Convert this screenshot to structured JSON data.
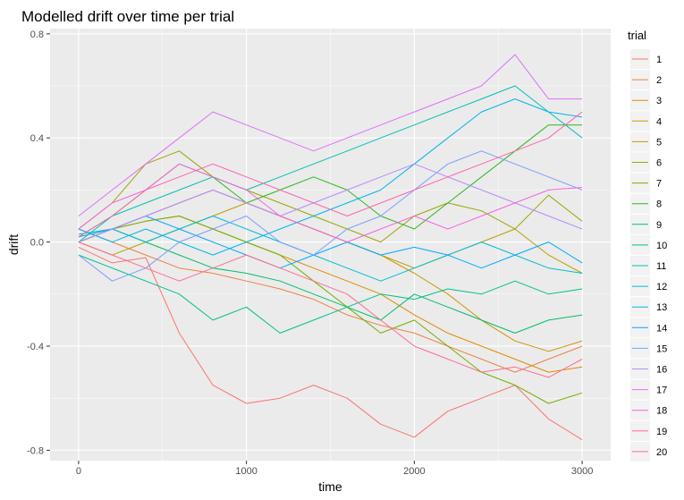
{
  "chart_data": {
    "type": "line",
    "title": "Modelled drift over time per trial",
    "xlabel": "time",
    "ylabel": "drift",
    "xlim": [
      -170,
      3170
    ],
    "ylim": [
      -0.84,
      0.82
    ],
    "xticks": [
      0,
      1000,
      2000,
      3000
    ],
    "xtick_labels": [
      "0",
      "1000",
      "2000",
      "3000"
    ],
    "yticks": [
      -0.8,
      -0.4,
      0.0,
      0.4,
      0.8
    ],
    "ytick_labels": [
      "-0.8",
      "-0.4",
      "0.0",
      "0.4",
      "0.8"
    ],
    "grid": true,
    "legend": {
      "title": "trial",
      "placement": "right"
    },
    "x": [
      0,
      200,
      400,
      600,
      800,
      1000,
      1200,
      1400,
      1600,
      1800,
      2000,
      2200,
      2400,
      2600,
      2800,
      3000
    ],
    "series": [
      {
        "name": "1",
        "color": "#F8766D",
        "values": [
          -0.02,
          -0.08,
          -0.06,
          -0.35,
          -0.55,
          -0.62,
          -0.6,
          -0.55,
          -0.6,
          -0.7,
          -0.75,
          -0.65,
          -0.6,
          -0.55,
          -0.68,
          -0.76
        ]
      },
      {
        "name": "2",
        "color": "#EE8043",
        "values": [
          0.05,
          0.0,
          -0.05,
          -0.1,
          -0.12,
          -0.15,
          -0.18,
          -0.22,
          -0.28,
          -0.32,
          -0.35,
          -0.4,
          -0.45,
          -0.5,
          -0.45,
          -0.4
        ]
      },
      {
        "name": "3",
        "color": "#E18A00",
        "values": [
          0.02,
          0.05,
          0.08,
          0.1,
          0.05,
          0.0,
          -0.05,
          -0.1,
          -0.15,
          -0.2,
          -0.28,
          -0.35,
          -0.4,
          -0.45,
          -0.5,
          -0.48
        ]
      },
      {
        "name": "4",
        "color": "#CF9400",
        "values": [
          0.0,
          0.05,
          0.1,
          0.15,
          0.2,
          0.15,
          0.1,
          0.05,
          0.0,
          -0.05,
          -0.12,
          -0.2,
          -0.3,
          -0.38,
          -0.42,
          -0.38
        ]
      },
      {
        "name": "5",
        "color": "#B79F00",
        "values": [
          0.0,
          -0.05,
          0.0,
          0.05,
          0.1,
          0.15,
          0.1,
          0.05,
          0.0,
          -0.05,
          -0.1,
          -0.05,
          0.0,
          0.05,
          -0.05,
          -0.12
        ]
      },
      {
        "name": "6",
        "color": "#9AA700",
        "values": [
          0.05,
          0.15,
          0.3,
          0.35,
          0.25,
          0.2,
          0.15,
          0.1,
          0.05,
          0.0,
          0.1,
          0.15,
          0.12,
          0.05,
          0.18,
          0.08
        ]
      },
      {
        "name": "7",
        "color": "#72B000",
        "values": [
          0.0,
          0.05,
          0.08,
          0.1,
          0.05,
          0.0,
          -0.05,
          -0.15,
          -0.25,
          -0.35,
          -0.3,
          -0.4,
          -0.5,
          -0.55,
          -0.62,
          -0.58
        ]
      },
      {
        "name": "8",
        "color": "#2CB91E",
        "values": [
          0.02,
          0.1,
          0.2,
          0.3,
          0.25,
          0.15,
          0.2,
          0.25,
          0.2,
          0.1,
          0.05,
          0.15,
          0.25,
          0.35,
          0.45,
          0.45
        ]
      },
      {
        "name": "9",
        "color": "#00BE67",
        "values": [
          0.0,
          0.05,
          0.0,
          -0.05,
          -0.1,
          -0.12,
          -0.15,
          -0.2,
          -0.25,
          -0.3,
          -0.2,
          -0.25,
          -0.3,
          -0.35,
          -0.3,
          -0.28
        ]
      },
      {
        "name": "10",
        "color": "#00C08E",
        "values": [
          -0.05,
          -0.1,
          -0.15,
          -0.2,
          -0.3,
          -0.25,
          -0.35,
          -0.3,
          -0.25,
          -0.2,
          -0.22,
          -0.18,
          -0.2,
          -0.15,
          -0.2,
          -0.18
        ]
      },
      {
        "name": "11",
        "color": "#00C0B2",
        "values": [
          0.0,
          0.1,
          0.15,
          0.2,
          0.25,
          0.2,
          0.25,
          0.3,
          0.35,
          0.4,
          0.45,
          0.5,
          0.55,
          0.6,
          0.5,
          0.4
        ]
      },
      {
        "name": "12",
        "color": "#00BDD0",
        "values": [
          0.03,
          0.05,
          0.0,
          0.05,
          0.1,
          0.05,
          0.0,
          -0.05,
          -0.1,
          -0.15,
          -0.1,
          -0.05,
          0.0,
          -0.05,
          -0.1,
          -0.12
        ]
      },
      {
        "name": "13",
        "color": "#00B5EB",
        "values": [
          0.05,
          0.0,
          0.05,
          0.0,
          -0.05,
          0.0,
          0.05,
          0.1,
          0.15,
          0.2,
          0.3,
          0.4,
          0.5,
          0.55,
          0.5,
          0.48
        ]
      },
      {
        "name": "14",
        "color": "#00A8FF",
        "values": [
          0.02,
          0.05,
          0.1,
          0.05,
          0.0,
          -0.05,
          -0.1,
          -0.05,
          0.0,
          -0.05,
          -0.02,
          -0.05,
          -0.1,
          -0.05,
          0.0,
          -0.08
        ]
      },
      {
        "name": "15",
        "color": "#7B9EFF",
        "values": [
          -0.05,
          -0.15,
          -0.1,
          0.0,
          0.05,
          0.1,
          0.0,
          -0.05,
          0.05,
          0.1,
          0.2,
          0.3,
          0.35,
          0.3,
          0.25,
          0.2
        ]
      },
      {
        "name": "16",
        "color": "#B88AFF",
        "values": [
          0.0,
          0.05,
          0.1,
          0.15,
          0.2,
          0.15,
          0.1,
          0.15,
          0.2,
          0.25,
          0.3,
          0.25,
          0.2,
          0.15,
          0.1,
          0.05
        ]
      },
      {
        "name": "17",
        "color": "#DF70F8",
        "values": [
          0.1,
          0.2,
          0.3,
          0.4,
          0.5,
          0.45,
          0.4,
          0.35,
          0.4,
          0.45,
          0.5,
          0.55,
          0.6,
          0.72,
          0.55,
          0.55
        ]
      },
      {
        "name": "18",
        "color": "#F763E0",
        "values": [
          0.05,
          0.15,
          0.2,
          0.3,
          0.25,
          0.2,
          0.1,
          0.05,
          0.0,
          0.05,
          0.1,
          0.05,
          0.1,
          0.15,
          0.2,
          0.21
        ]
      },
      {
        "name": "19",
        "color": "#FF64B0",
        "values": [
          0.02,
          0.1,
          0.2,
          0.25,
          0.3,
          0.25,
          0.2,
          0.15,
          0.1,
          0.15,
          0.2,
          0.25,
          0.3,
          0.35,
          0.4,
          0.5
        ]
      },
      {
        "name": "20",
        "color": "#FF6C91",
        "values": [
          0.0,
          -0.05,
          -0.1,
          -0.15,
          -0.1,
          -0.05,
          -0.1,
          -0.15,
          -0.2,
          -0.3,
          -0.4,
          -0.45,
          -0.5,
          -0.48,
          -0.52,
          -0.45
        ]
      }
    ]
  }
}
